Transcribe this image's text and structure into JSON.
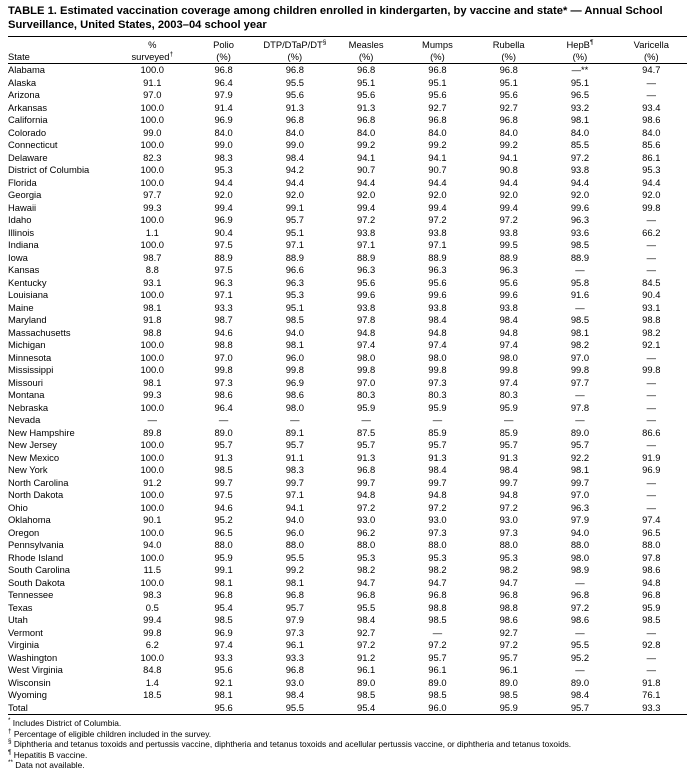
{
  "title": "TABLE 1. Estimated vaccination coverage among children enrolled in kindergarten, by vaccine and state* — Annual School Surveillance, United States, 2003–04 school year",
  "table": {
    "columns": [
      {
        "top": "",
        "bottom": "State"
      },
      {
        "top": "%",
        "bottom": "surveyed",
        "bottom_sup": "†"
      },
      {
        "top": "Polio",
        "bottom": "(%)"
      },
      {
        "top": "DTP/DTaP/DT",
        "top_sup": "§",
        "bottom": "(%)"
      },
      {
        "top": "Measles",
        "bottom": "(%)"
      },
      {
        "top": "Mumps",
        "bottom": "(%)"
      },
      {
        "top": "Rubella",
        "bottom": "(%)"
      },
      {
        "top": "HepB",
        "top_sup": "¶",
        "bottom": "(%)"
      },
      {
        "top": "Varicella",
        "bottom": "(%)"
      }
    ],
    "rows": [
      {
        "state": "Alabama",
        "values": [
          "100.0",
          "96.8",
          "96.8",
          "96.8",
          "96.8",
          "96.8",
          "—**",
          "94.7"
        ]
      },
      {
        "state": "Alaska",
        "values": [
          "91.1",
          "96.4",
          "95.5",
          "95.1",
          "95.1",
          "95.1",
          "95.1",
          "—"
        ]
      },
      {
        "state": "Arizona",
        "values": [
          "97.0",
          "97.9",
          "95.6",
          "95.6",
          "95.6",
          "95.6",
          "96.5",
          "—"
        ]
      },
      {
        "state": "Arkansas",
        "values": [
          "100.0",
          "91.4",
          "91.3",
          "91.3",
          "92.7",
          "92.7",
          "93.2",
          "93.4"
        ]
      },
      {
        "state": "California",
        "values": [
          "100.0",
          "96.9",
          "96.8",
          "96.8",
          "96.8",
          "96.8",
          "98.1",
          "98.6"
        ]
      },
      {
        "state": "Colorado",
        "values": [
          "99.0",
          "84.0",
          "84.0",
          "84.0",
          "84.0",
          "84.0",
          "84.0",
          "84.0"
        ]
      },
      {
        "state": "Connecticut",
        "values": [
          "100.0",
          "99.0",
          "99.0",
          "99.2",
          "99.2",
          "99.2",
          "85.5",
          "85.6"
        ]
      },
      {
        "state": "Delaware",
        "values": [
          "82.3",
          "98.3",
          "98.4",
          "94.1",
          "94.1",
          "94.1",
          "97.2",
          "86.1"
        ]
      },
      {
        "state": "District of Columbia",
        "values": [
          "100.0",
          "95.3",
          "94.2",
          "90.7",
          "90.7",
          "90.8",
          "93.8",
          "95.3"
        ]
      },
      {
        "state": "Florida",
        "values": [
          "100.0",
          "94.4",
          "94.4",
          "94.4",
          "94.4",
          "94.4",
          "94.4",
          "94.4"
        ]
      },
      {
        "state": "Georgia",
        "values": [
          "97.7",
          "92.0",
          "92.0",
          "92.0",
          "92.0",
          "92.0",
          "92.0",
          "92.0"
        ]
      },
      {
        "state": "Hawaii",
        "values": [
          "99.3",
          "99.4",
          "99.1",
          "99.4",
          "99.4",
          "99.4",
          "99.6",
          "99.8"
        ]
      },
      {
        "state": "Idaho",
        "values": [
          "100.0",
          "96.9",
          "95.7",
          "97.2",
          "97.2",
          "97.2",
          "96.3",
          "—"
        ]
      },
      {
        "state": "Illinois",
        "values": [
          "1.1",
          "90.4",
          "95.1",
          "93.8",
          "93.8",
          "93.8",
          "93.6",
          "66.2"
        ]
      },
      {
        "state": "Indiana",
        "values": [
          "100.0",
          "97.5",
          "97.1",
          "97.1",
          "97.1",
          "99.5",
          "98.5",
          "—"
        ]
      },
      {
        "state": "Iowa",
        "values": [
          "98.7",
          "88.9",
          "88.9",
          "88.9",
          "88.9",
          "88.9",
          "88.9",
          "—"
        ]
      },
      {
        "state": "Kansas",
        "values": [
          "8.8",
          "97.5",
          "96.6",
          "96.3",
          "96.3",
          "96.3",
          "—",
          "—"
        ]
      },
      {
        "state": "Kentucky",
        "values": [
          "93.1",
          "96.3",
          "96.3",
          "95.6",
          "95.6",
          "95.6",
          "95.8",
          "84.5"
        ]
      },
      {
        "state": "Louisiana",
        "values": [
          "100.0",
          "97.1",
          "95.3",
          "99.6",
          "99.6",
          "99.6",
          "91.6",
          "90.4"
        ]
      },
      {
        "state": "Maine",
        "values": [
          "98.1",
          "93.3",
          "95.1",
          "93.8",
          "93.8",
          "93.8",
          "—",
          "93.1"
        ]
      },
      {
        "state": "Maryland",
        "values": [
          "91.8",
          "98.7",
          "98.5",
          "97.8",
          "98.4",
          "98.4",
          "98.5",
          "98.8"
        ]
      },
      {
        "state": "Massachusetts",
        "values": [
          "98.8",
          "94.6",
          "94.0",
          "94.8",
          "94.8",
          "94.8",
          "98.1",
          "98.2"
        ]
      },
      {
        "state": "Michigan",
        "values": [
          "100.0",
          "98.8",
          "98.1",
          "97.4",
          "97.4",
          "97.4",
          "98.2",
          "92.1"
        ]
      },
      {
        "state": "Minnesota",
        "values": [
          "100.0",
          "97.0",
          "96.0",
          "98.0",
          "98.0",
          "98.0",
          "97.0",
          "—"
        ]
      },
      {
        "state": "Mississippi",
        "values": [
          "100.0",
          "99.8",
          "99.8",
          "99.8",
          "99.8",
          "99.8",
          "99.8",
          "99.8"
        ]
      },
      {
        "state": "Missouri",
        "values": [
          "98.1",
          "97.3",
          "96.9",
          "97.0",
          "97.3",
          "97.4",
          "97.7",
          "—"
        ]
      },
      {
        "state": "Montana",
        "values": [
          "99.3",
          "98.6",
          "98.6",
          "80.3",
          "80.3",
          "80.3",
          "—",
          "—"
        ]
      },
      {
        "state": "Nebraska",
        "values": [
          "100.0",
          "96.4",
          "98.0",
          "95.9",
          "95.9",
          "95.9",
          "97.8",
          "—"
        ]
      },
      {
        "state": "Nevada",
        "values": [
          "—",
          "—",
          "—",
          "—",
          "—",
          "—",
          "—",
          "—"
        ]
      },
      {
        "state": "New Hampshire",
        "values": [
          "89.8",
          "89.0",
          "89.1",
          "87.5",
          "85.9",
          "85.9",
          "89.0",
          "86.6"
        ]
      },
      {
        "state": "New Jersey",
        "values": [
          "100.0",
          "95.7",
          "95.7",
          "95.7",
          "95.7",
          "95.7",
          "95.7",
          "—"
        ]
      },
      {
        "state": "New Mexico",
        "values": [
          "100.0",
          "91.3",
          "91.1",
          "91.3",
          "91.3",
          "91.3",
          "92.2",
          "91.9"
        ]
      },
      {
        "state": "New York",
        "values": [
          "100.0",
          "98.5",
          "98.3",
          "96.8",
          "98.4",
          "98.4",
          "98.1",
          "96.9"
        ]
      },
      {
        "state": "North Carolina",
        "values": [
          "91.2",
          "99.7",
          "99.7",
          "99.7",
          "99.7",
          "99.7",
          "99.7",
          "—"
        ]
      },
      {
        "state": "North Dakota",
        "values": [
          "100.0",
          "97.5",
          "97.1",
          "94.8",
          "94.8",
          "94.8",
          "97.0",
          "—"
        ]
      },
      {
        "state": "Ohio",
        "values": [
          "100.0",
          "94.6",
          "94.1",
          "97.2",
          "97.2",
          "97.2",
          "96.3",
          "—"
        ]
      },
      {
        "state": "Oklahoma",
        "values": [
          "90.1",
          "95.2",
          "94.0",
          "93.0",
          "93.0",
          "93.0",
          "97.9",
          "97.4"
        ]
      },
      {
        "state": "Oregon",
        "values": [
          "100.0",
          "96.5",
          "96.0",
          "96.2",
          "97.3",
          "97.3",
          "94.0",
          "96.5"
        ]
      },
      {
        "state": "Pennsylvania",
        "values": [
          "94.0",
          "88.0",
          "88.0",
          "88.0",
          "88.0",
          "88.0",
          "88.0",
          "88.0"
        ]
      },
      {
        "state": "Rhode Island",
        "values": [
          "100.0",
          "95.9",
          "95.5",
          "95.3",
          "95.3",
          "95.3",
          "98.0",
          "97.8"
        ]
      },
      {
        "state": "South Carolina",
        "values": [
          "11.5",
          "99.1",
          "99.2",
          "98.2",
          "98.2",
          "98.2",
          "98.9",
          "98.6"
        ]
      },
      {
        "state": "South Dakota",
        "values": [
          "100.0",
          "98.1",
          "98.1",
          "94.7",
          "94.7",
          "94.7",
          "—",
          "94.8"
        ]
      },
      {
        "state": "Tennessee",
        "values": [
          "98.3",
          "96.8",
          "96.8",
          "96.8",
          "96.8",
          "96.8",
          "96.8",
          "96.8"
        ]
      },
      {
        "state": "Texas",
        "values": [
          "0.5",
          "95.4",
          "95.7",
          "95.5",
          "98.8",
          "98.8",
          "97.2",
          "95.9"
        ]
      },
      {
        "state": "Utah",
        "values": [
          "99.4",
          "98.5",
          "97.9",
          "98.4",
          "98.5",
          "98.6",
          "98.6",
          "98.5"
        ]
      },
      {
        "state": "Vermont",
        "values": [
          "99.8",
          "96.9",
          "97.3",
          "92.7",
          "—",
          "92.7",
          "—",
          "—"
        ]
      },
      {
        "state": "Virginia",
        "values": [
          "6.2",
          "97.4",
          "96.1",
          "97.2",
          "97.2",
          "97.2",
          "95.5",
          "92.8"
        ]
      },
      {
        "state": "Washington",
        "values": [
          "100.0",
          "93.3",
          "93.3",
          "91.2",
          "95.7",
          "95.7",
          "95.2",
          "—"
        ]
      },
      {
        "state": "West Virginia",
        "values": [
          "84.8",
          "95.6",
          "96.8",
          "96.1",
          "96.1",
          "96.1",
          "—",
          "—"
        ]
      },
      {
        "state": "Wisconsin",
        "values": [
          "1.4",
          "92.1",
          "93.0",
          "89.0",
          "89.0",
          "89.0",
          "89.0",
          "91.8"
        ]
      },
      {
        "state": "Wyoming",
        "values": [
          "18.5",
          "98.1",
          "98.4",
          "98.5",
          "98.5",
          "98.5",
          "98.4",
          "76.1"
        ]
      }
    ],
    "total": {
      "label": "Total",
      "values": [
        "",
        "95.6",
        "95.5",
        "95.4",
        "96.0",
        "95.9",
        "95.7",
        "93.3"
      ]
    }
  },
  "footnotes": [
    {
      "marker": "*",
      "text": "Includes District of Columbia."
    },
    {
      "marker": "†",
      "text": "Percentage of eligible children included in the survey."
    },
    {
      "marker": "§",
      "text": "Diphtheria and tetanus toxoids and pertussis vaccine, diphtheria and tetanus toxoids and acellular pertussis vaccine, or diphtheria and tetanus toxoids."
    },
    {
      "marker": "¶",
      "text": "Hepatitis B vaccine."
    },
    {
      "marker": "**",
      "text": "Data not available."
    }
  ]
}
